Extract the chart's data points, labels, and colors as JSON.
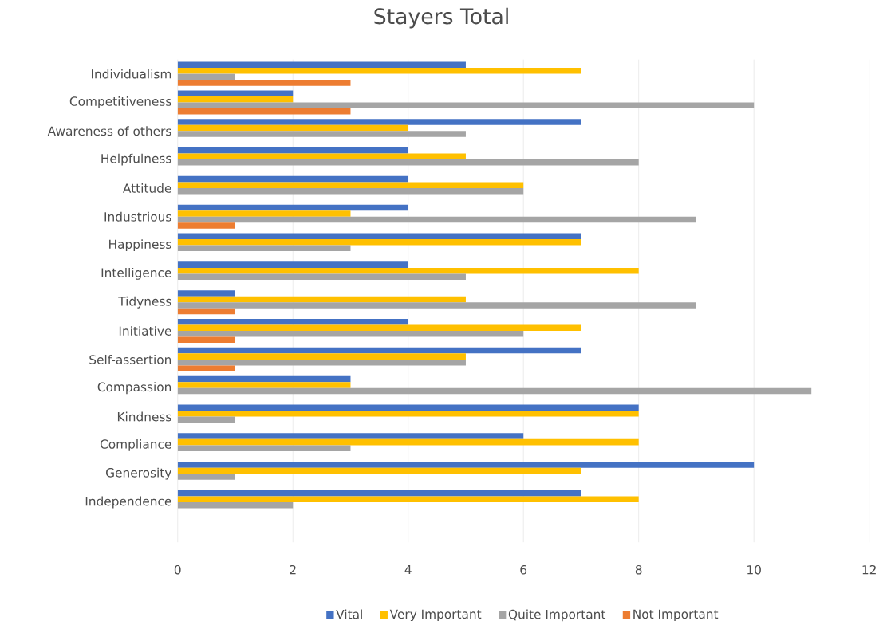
{
  "chart_data": {
    "type": "bar",
    "orientation": "horizontal",
    "title": "Stayers Total",
    "categories": [
      "Individualism",
      "Competitiveness",
      "Awareness of others",
      "Helpfulness",
      "Attitude",
      "Industrious",
      "Happiness",
      "Intelligence",
      "Tidyness",
      "Initiative",
      "Self-assertion",
      "Compassion",
      "Kindness",
      "Compliance",
      "Generosity",
      "Independence"
    ],
    "series": [
      {
        "name": "Vital",
        "color": "#4472c4",
        "values": [
          5,
          2,
          7,
          4,
          4,
          4,
          7,
          4,
          1,
          4,
          7,
          3,
          8,
          6,
          10,
          7
        ]
      },
      {
        "name": "Very Important",
        "color": "#ffc000",
        "values": [
          7,
          2,
          4,
          5,
          6,
          3,
          7,
          8,
          5,
          7,
          5,
          3,
          8,
          8,
          7,
          8
        ]
      },
      {
        "name": "Quite Important",
        "color": "#a5a5a5",
        "values": [
          1,
          10,
          5,
          8,
          6,
          9,
          3,
          5,
          9,
          6,
          5,
          11,
          1,
          3,
          1,
          2
        ]
      },
      {
        "name": "Not Important",
        "color": "#ed7d31",
        "values": [
          3,
          3,
          0,
          0,
          0,
          1,
          0,
          0,
          1,
          1,
          1,
          0,
          0,
          0,
          0,
          0
        ]
      }
    ],
    "xlim": [
      0,
      12
    ],
    "xticks": [
      0,
      2,
      4,
      6,
      8,
      10,
      12
    ],
    "grid": "x",
    "legend": "bottom"
  }
}
